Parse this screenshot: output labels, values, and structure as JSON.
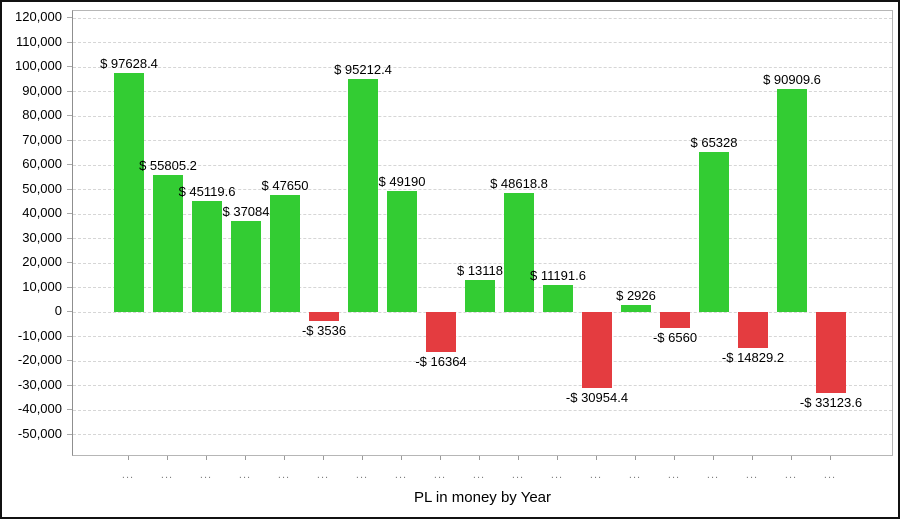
{
  "frame": {
    "background": "#ffffff",
    "border_color": "#111111"
  },
  "chart_data": {
    "type": "bar",
    "title": "PL in money by Year",
    "xlabel": "PL in money by Year",
    "ylabel": "",
    "legend": "none",
    "grid": "horizontal-dashed",
    "ylim": [
      -50000,
      120000
    ],
    "ytick_step": 10000,
    "colors": {
      "positive": "#33cc33",
      "negative": "#e43c40"
    },
    "categories": [
      "...",
      "...",
      "...",
      "...",
      "...",
      "...",
      "...",
      "...",
      "...",
      "...",
      "...",
      "...",
      "...",
      "...",
      "...",
      "...",
      "...",
      "...",
      "..."
    ],
    "values": [
      97628.4,
      55805.2,
      45119.6,
      37084,
      47650,
      -3536,
      95212.4,
      49190,
      -16364,
      13118,
      48618.8,
      11191.6,
      -30954.4,
      2926,
      -6560,
      65328,
      -14829.2,
      90909.6,
      -33123.6
    ],
    "bar_labels": [
      "$ 97628.4",
      "$ 55805.2",
      "$ 45119.6",
      "$ 37084",
      "$ 47650",
      "-$ 3536",
      "$ 95212.4",
      "$ 49190",
      "-$ 16364",
      "$ 13118",
      "$ 48618.8",
      "$ 11191.6",
      "-$ 30954.4",
      "$ 2926",
      "-$ 6560",
      "$ 65328",
      "-$ 14829.2",
      "$ 90909.6",
      "-$ 33123.6"
    ],
    "yticks": [
      {
        "value": 120000,
        "label": "120,000"
      },
      {
        "value": 110000,
        "label": "110,000"
      },
      {
        "value": 100000,
        "label": "100,000"
      },
      {
        "value": 90000,
        "label": "90,000"
      },
      {
        "value": 80000,
        "label": "80,000"
      },
      {
        "value": 70000,
        "label": "70,000"
      },
      {
        "value": 60000,
        "label": "60,000"
      },
      {
        "value": 50000,
        "label": "50,000"
      },
      {
        "value": 40000,
        "label": "40,000"
      },
      {
        "value": 30000,
        "label": "30,000"
      },
      {
        "value": 20000,
        "label": "20,000"
      },
      {
        "value": 10000,
        "label": "10,000"
      },
      {
        "value": 0,
        "label": "0"
      },
      {
        "value": -10000,
        "label": "-10,000"
      },
      {
        "value": -20000,
        "label": "-20,000"
      },
      {
        "value": -30000,
        "label": "-30,000"
      },
      {
        "value": -40000,
        "label": "-40,000"
      },
      {
        "value": -50000,
        "label": "-50,000"
      }
    ]
  }
}
